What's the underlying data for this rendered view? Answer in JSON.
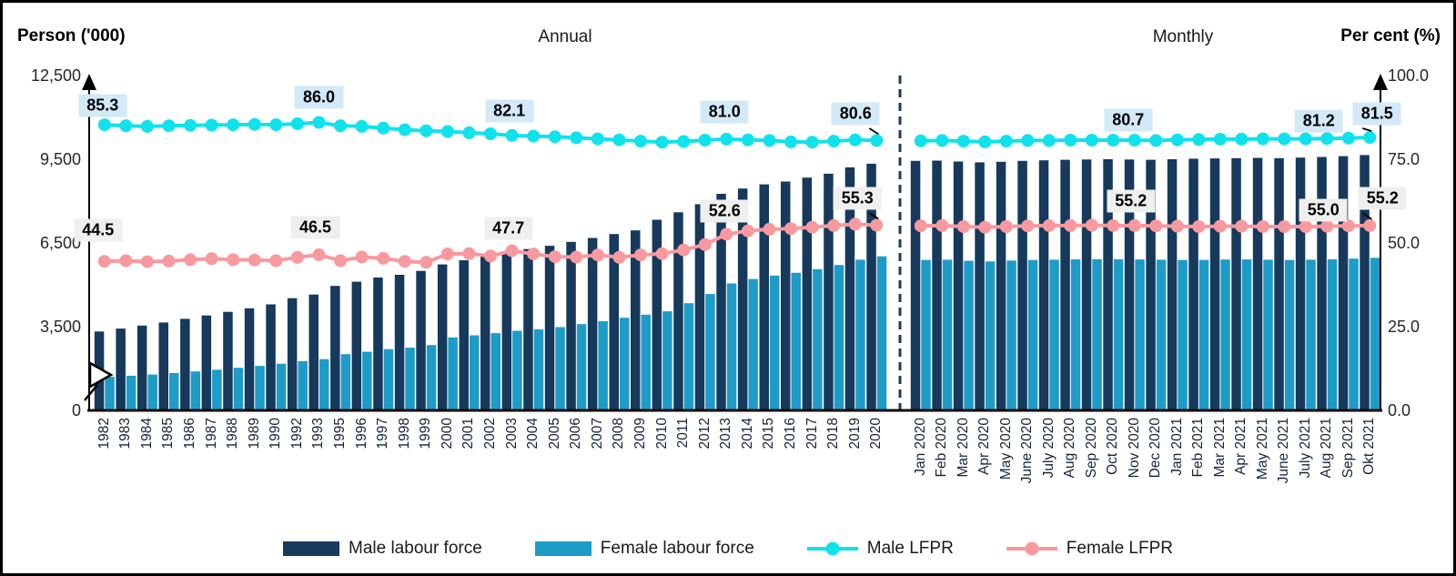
{
  "chart_data": {
    "type": "bar+line combo (dual axis)",
    "left_axis": {
      "title": "Person ('000)",
      "ticks": [
        "12,500",
        "9,500",
        "6,500",
        "3,500",
        "0"
      ],
      "tick_values": [
        12500,
        9500,
        6500,
        3500,
        0
      ],
      "has_axis_break": true
    },
    "right_axis": {
      "title": "Per cent (%)",
      "ticks": [
        "100.0",
        "75.0",
        "50.0",
        "25.0",
        "0.0"
      ],
      "tick_values": [
        100,
        75,
        50,
        25,
        0
      ]
    },
    "grid": "off",
    "legend_position": "bottom",
    "sections": [
      {
        "label": "Annual",
        "categories": [
          "1982",
          "1983",
          "1984",
          "1985",
          "1986",
          "1987",
          "1988",
          "1989",
          "1990",
          "1992",
          "1993",
          "1995",
          "1996",
          "1997",
          "1998",
          "1999",
          "2000",
          "2001",
          "2002",
          "2003",
          "2004",
          "2005",
          "2006",
          "2007",
          "2008",
          "2009",
          "2010",
          "2011",
          "2012",
          "2013",
          "2014",
          "2015",
          "2016",
          "2017",
          "2018",
          "2019",
          "2020"
        ],
        "series": {
          "male_labour_force": [
            3300,
            3420,
            3540,
            3650,
            3780,
            3900,
            4030,
            4160,
            4300,
            4520,
            4650,
            4960,
            5110,
            5260,
            5360,
            5500,
            5730,
            5880,
            6010,
            6170,
            6280,
            6400,
            6540,
            6680,
            6820,
            6950,
            7330,
            7600,
            7890,
            8260,
            8450,
            8600,
            8700,
            8840,
            8980,
            9210,
            9340
          ],
          "female_labour_force": [
            1400,
            1450,
            1500,
            1560,
            1630,
            1700,
            1780,
            1860,
            1950,
            2060,
            2140,
            2350,
            2450,
            2560,
            2620,
            2730,
            3050,
            3140,
            3230,
            3330,
            3390,
            3480,
            3590,
            3700,
            3820,
            3930,
            4050,
            4340,
            4670,
            5050,
            5210,
            5330,
            5430,
            5560,
            5710,
            5900,
            6020
          ],
          "male_lfpr": [
            85.3,
            85.0,
            84.8,
            85.0,
            85.1,
            85.2,
            85.3,
            85.4,
            85.3,
            85.6,
            86.0,
            85.0,
            84.8,
            84.3,
            83.8,
            83.5,
            83.3,
            82.9,
            82.6,
            82.1,
            81.9,
            81.7,
            81.4,
            81.1,
            80.8,
            80.4,
            80.1,
            80.3,
            80.7,
            81.0,
            80.8,
            80.6,
            80.2,
            80.1,
            80.4,
            80.8,
            80.6
          ],
          "female_lfpr": [
            44.5,
            44.7,
            44.4,
            44.6,
            45.0,
            45.3,
            45.0,
            44.9,
            44.7,
            45.7,
            46.5,
            44.7,
            45.8,
            45.4,
            44.5,
            44.2,
            46.7,
            46.8,
            46.1,
            47.7,
            46.7,
            45.9,
            45.8,
            46.4,
            45.7,
            46.4,
            46.8,
            47.9,
            49.5,
            52.6,
            53.6,
            54.1,
            54.3,
            54.7,
            55.2,
            55.6,
            55.3
          ]
        }
      },
      {
        "label": "Monthly",
        "categories": [
          "Jan 2020",
          "Feb 2020",
          "Mar 2020",
          "Apr 2020",
          "May 2020",
          "June 2020",
          "July 2020",
          "Aug 2020",
          "Sep 2020",
          "Oct 2020",
          "Nov 2020",
          "Dec 2020",
          "Jan 2021",
          "Feb 2021",
          "Mar 2021",
          "Apr 2021",
          "May 2021",
          "June 2021",
          "July 2021",
          "Aug 2021",
          "Sep 2021",
          "Okt 2021"
        ],
        "series": {
          "male_labour_force": [
            9440,
            9450,
            9420,
            9390,
            9410,
            9440,
            9460,
            9480,
            9490,
            9500,
            9490,
            9480,
            9500,
            9520,
            9530,
            9540,
            9550,
            9540,
            9560,
            9580,
            9610,
            9650
          ],
          "female_labour_force": [
            5890,
            5900,
            5860,
            5840,
            5870,
            5890,
            5900,
            5910,
            5920,
            5915,
            5910,
            5900,
            5890,
            5895,
            5905,
            5910,
            5900,
            5890,
            5900,
            5915,
            5940,
            5970
          ],
          "male_lfpr": [
            80.5,
            80.6,
            80.4,
            80.2,
            80.4,
            80.6,
            80.6,
            80.7,
            80.7,
            80.7,
            80.7,
            80.6,
            80.8,
            80.9,
            81.0,
            81.0,
            81.1,
            81.1,
            81.1,
            81.2,
            81.3,
            81.5
          ],
          "female_lfpr": [
            55.1,
            55.2,
            54.9,
            54.7,
            54.9,
            55.1,
            55.2,
            55.2,
            55.3,
            55.2,
            55.2,
            55.1,
            55.0,
            54.9,
            55.0,
            55.0,
            54.9,
            54.9,
            54.9,
            55.0,
            55.1,
            55.2
          ]
        }
      }
    ],
    "annotations": [
      {
        "id": "a1",
        "section": 0,
        "series": "male_lfpr",
        "index": 0,
        "text": "85.3",
        "style": "blue",
        "leader": false
      },
      {
        "id": "a2",
        "section": 0,
        "series": "male_lfpr",
        "index": 10,
        "text": "86.0",
        "style": "blue",
        "leader": false
      },
      {
        "id": "a3",
        "section": 0,
        "series": "male_lfpr",
        "index": 19,
        "text": "82.1",
        "style": "blue",
        "leader": false
      },
      {
        "id": "a4",
        "section": 0,
        "series": "male_lfpr",
        "index": 29,
        "text": "81.0",
        "style": "blue",
        "leader": false
      },
      {
        "id": "a5",
        "section": 0,
        "series": "male_lfpr",
        "index": 36,
        "text": "80.6",
        "style": "blue",
        "leader": true
      },
      {
        "id": "b1",
        "section": 0,
        "series": "female_lfpr",
        "index": 0,
        "text": "44.5",
        "style": "gray",
        "leader": false
      },
      {
        "id": "b2",
        "section": 0,
        "series": "female_lfpr",
        "index": 10,
        "text": "46.5",
        "style": "gray",
        "leader": false
      },
      {
        "id": "b3",
        "section": 0,
        "series": "female_lfpr",
        "index": 19,
        "text": "47.7",
        "style": "gray",
        "leader": false
      },
      {
        "id": "b4",
        "section": 0,
        "series": "female_lfpr",
        "index": 29,
        "text": "52.6",
        "style": "gray",
        "leader": false
      },
      {
        "id": "b5",
        "section": 0,
        "series": "female_lfpr",
        "index": 36,
        "text": "55.3",
        "style": "gray",
        "leader": true
      },
      {
        "id": "c1",
        "section": 1,
        "series": "male_lfpr",
        "index": 10,
        "text": "80.7",
        "style": "blue",
        "leader": false
      },
      {
        "id": "c2",
        "section": 1,
        "series": "male_lfpr",
        "index": 19,
        "text": "81.2",
        "style": "blue",
        "leader": false
      },
      {
        "id": "c3",
        "section": 1,
        "series": "male_lfpr",
        "index": 21,
        "text": "81.5",
        "style": "blue",
        "leader": true
      },
      {
        "id": "d1",
        "section": 1,
        "series": "female_lfpr",
        "index": 10,
        "text": "55.2",
        "style": "gray",
        "leader": false
      },
      {
        "id": "d2",
        "section": 1,
        "series": "female_lfpr",
        "index": 19,
        "text": "55.0",
        "style": "gray",
        "leader": false
      },
      {
        "id": "d3",
        "section": 1,
        "series": "female_lfpr",
        "index": 21,
        "text": "55.2",
        "style": "gray",
        "leader": true
      }
    ],
    "legend": [
      {
        "label": "Male labour force",
        "swatch": "bar",
        "color_key": "male_bar"
      },
      {
        "label": "Female labour force",
        "swatch": "bar",
        "color_key": "female_bar"
      },
      {
        "label": "Male LFPR",
        "swatch": "line",
        "color_key": "male_line"
      },
      {
        "label": "Female LFPR",
        "swatch": "line",
        "color_key": "female_line"
      }
    ],
    "colors": {
      "male_bar": "#16395c",
      "female_bar": "#1d9cc8",
      "male_line": "#10e2ec",
      "female_line": "#f8999f",
      "divider": "#1f3a5f",
      "annotation_blue_bg": "#d3e9f8",
      "annotation_gray_bg": "#efefef",
      "axis": "#000000"
    }
  }
}
